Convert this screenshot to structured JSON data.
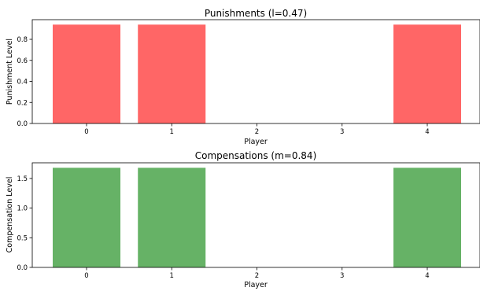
{
  "chart_data": [
    {
      "type": "bar",
      "title": "Punishments (l=0.47)",
      "xlabel": "Player",
      "ylabel": "Punishment Level",
      "categories": [
        "0",
        "1",
        "2",
        "3",
        "4"
      ],
      "values": [
        0.94,
        0.94,
        0,
        0,
        0.94
      ],
      "ylim": [
        0,
        0.987
      ],
      "yticks": [
        "0.0",
        "0.2",
        "0.4",
        "0.6",
        "0.8"
      ],
      "bar_color": "#ff6666",
      "grid": false
    },
    {
      "type": "bar",
      "title": "Compensations (m=0.84)",
      "xlabel": "Player",
      "ylabel": "Compensation Level",
      "categories": [
        "0",
        "1",
        "2",
        "3",
        "4"
      ],
      "values": [
        1.68,
        1.68,
        0,
        0,
        1.68
      ],
      "ylim": [
        0,
        1.764
      ],
      "yticks": [
        "0.0",
        "0.5",
        "1.0",
        "1.5"
      ],
      "bar_color": "#66b266",
      "grid": false
    }
  ]
}
